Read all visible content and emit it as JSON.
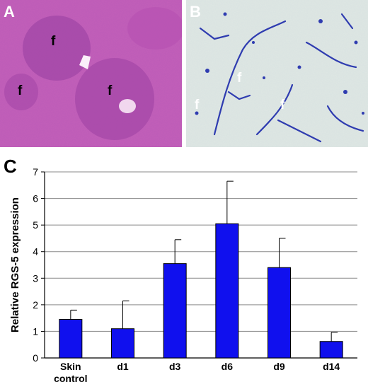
{
  "panels": {
    "a": {
      "letter": "A",
      "follicle_label": "f"
    },
    "b": {
      "letter": "B",
      "follicle_label": "f"
    },
    "c": {
      "letter": "C"
    }
  },
  "colors": {
    "bar": "#1010ee",
    "he_background": "#c260b9",
    "ihc_background": "#dfe7e4",
    "stain": "#2f3cb0"
  },
  "chart_data": {
    "type": "bar",
    "categories": [
      "Skin\ncontrol",
      "d1",
      "d3",
      "d6",
      "d9",
      "d14"
    ],
    "values": [
      1.45,
      1.1,
      3.55,
      5.05,
      3.4,
      0.62
    ],
    "errors": [
      0.35,
      1.05,
      0.9,
      1.6,
      1.1,
      0.35
    ],
    "ylabel": "Relative RGS-5  expression",
    "ylim": [
      0,
      7
    ],
    "yticks": [
      0,
      1,
      2,
      3,
      4,
      5,
      6,
      7
    ],
    "grid": true
  }
}
